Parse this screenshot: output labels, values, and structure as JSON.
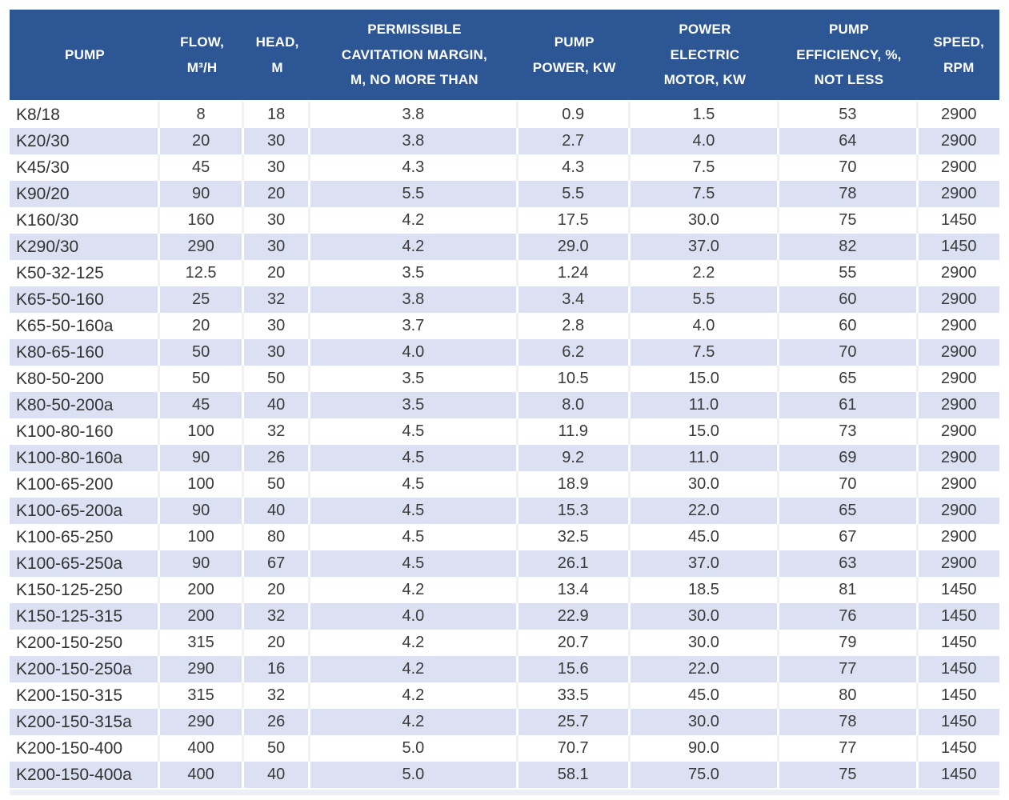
{
  "table": {
    "columns": [
      {
        "id": "pump",
        "label": "PUMP"
      },
      {
        "id": "flow",
        "label": "FLOW,\nM³/H"
      },
      {
        "id": "head",
        "label": "HEAD,\nM"
      },
      {
        "id": "cavitation_margin",
        "label": "PERMISSIBLE\nCAVITATION MARGIN,\nM, NO MORE THAN"
      },
      {
        "id": "pump_power",
        "label": "PUMP\nPOWER, KW"
      },
      {
        "id": "motor_power",
        "label": "POWER\nELECTRIC\nMOTOR, KW"
      },
      {
        "id": "efficiency",
        "label": "PUMP\nEFFICIENCY, %,\nNOT LESS"
      },
      {
        "id": "speed",
        "label": "SPEED,\nRPM"
      }
    ],
    "rows": [
      [
        "K8/18",
        "8",
        "18",
        "3.8",
        "0.9",
        "1.5",
        "53",
        "2900"
      ],
      [
        "K20/30",
        "20",
        "30",
        "3.8",
        "2.7",
        "4.0",
        "64",
        "2900"
      ],
      [
        "K45/30",
        "45",
        "30",
        "4.3",
        "4.3",
        "7.5",
        "70",
        "2900"
      ],
      [
        "K90/20",
        "90",
        "20",
        "5.5",
        "5.5",
        "7.5",
        "78",
        "2900"
      ],
      [
        "K160/30",
        "160",
        "30",
        "4.2",
        "17.5",
        "30.0",
        "75",
        "1450"
      ],
      [
        "K290/30",
        "290",
        "30",
        "4.2",
        "29.0",
        "37.0",
        "82",
        "1450"
      ],
      [
        "K50-32-125",
        "12.5",
        "20",
        "3.5",
        "1.24",
        "2.2",
        "55",
        "2900"
      ],
      [
        "K65-50-160",
        "25",
        "32",
        "3.8",
        "3.4",
        "5.5",
        "60",
        "2900"
      ],
      [
        "K65-50-160a",
        "20",
        "30",
        "3.7",
        "2.8",
        "4.0",
        "60",
        "2900"
      ],
      [
        "K80-65-160",
        "50",
        "30",
        "4.0",
        "6.2",
        "7.5",
        "70",
        "2900"
      ],
      [
        "K80-50-200",
        "50",
        "50",
        "3.5",
        "10.5",
        "15.0",
        "65",
        "2900"
      ],
      [
        "K80-50-200a",
        "45",
        "40",
        "3.5",
        "8.0",
        "11.0",
        "61",
        "2900"
      ],
      [
        "K100-80-160",
        "100",
        "32",
        "4.5",
        "11.9",
        "15.0",
        "73",
        "2900"
      ],
      [
        "K100-80-160a",
        "90",
        "26",
        "4.5",
        "9.2",
        "11.0",
        "69",
        "2900"
      ],
      [
        "K100-65-200",
        "100",
        "50",
        "4.5",
        "18.9",
        "30.0",
        "70",
        "2900"
      ],
      [
        "K100-65-200a",
        "90",
        "40",
        "4.5",
        "15.3",
        "22.0",
        "65",
        "2900"
      ],
      [
        "K100-65-250",
        "100",
        "80",
        "4.5",
        "32.5",
        "45.0",
        "67",
        "2900"
      ],
      [
        "K100-65-250a",
        "90",
        "67",
        "4.5",
        "26.1",
        "37.0",
        "63",
        "2900"
      ],
      [
        "K150-125-250",
        "200",
        "20",
        "4.2",
        "13.4",
        "18.5",
        "81",
        "1450"
      ],
      [
        "K150-125-315",
        "200",
        "32",
        "4.0",
        "22.9",
        "30.0",
        "76",
        "1450"
      ],
      [
        "K200-150-250",
        "315",
        "20",
        "4.2",
        "20.7",
        "30.0",
        "79",
        "1450"
      ],
      [
        "K200-150-250a",
        "290",
        "16",
        "4.2",
        "15.6",
        "22.0",
        "77",
        "1450"
      ],
      [
        "K200-150-315",
        "315",
        "32",
        "4.2",
        "33.5",
        "45.0",
        "80",
        "1450"
      ],
      [
        "K200-150-315a",
        "290",
        "26",
        "4.2",
        "25.7",
        "30.0",
        "78",
        "1450"
      ],
      [
        "K200-150-400",
        "400",
        "50",
        "5.0",
        "70.7",
        "90.0",
        "77",
        "1450"
      ],
      [
        "K200-150-400a",
        "400",
        "40",
        "5.0",
        "58.1",
        "75.0",
        "75",
        "1450"
      ]
    ]
  },
  "colors": {
    "header_bg": "#2d5695",
    "header_text": "#ffffff",
    "stripe_row_bg": "#dbe1f2",
    "plain_row_bg": "#ffffff",
    "body_text": "#3a3a3a"
  }
}
